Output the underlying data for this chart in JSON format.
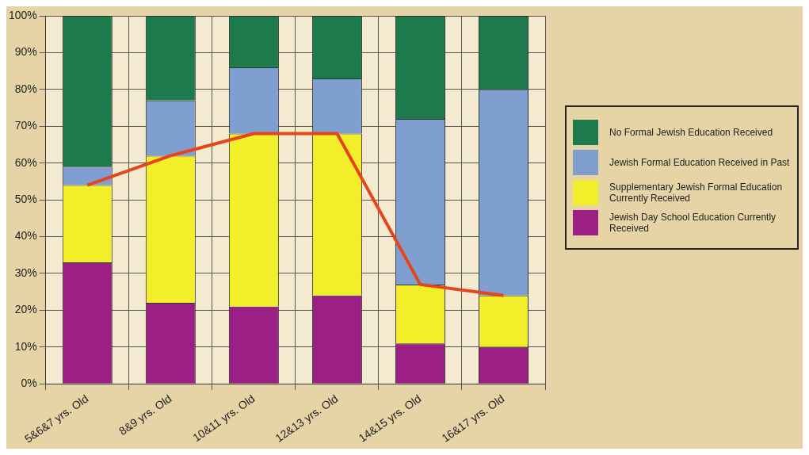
{
  "chart_data": {
    "type": "bar",
    "stacked": true,
    "categories": [
      "5&6&7 yrs. Old",
      "8&9 yrs. Old",
      "10&11 yrs. Old",
      "12&13 yrs. Old",
      "14&15 yrs. Old",
      "16&17 yrs. Old"
    ],
    "series": [
      {
        "name": "Jewish Day School Education Currently Received",
        "color": "#9b1f85",
        "values": [
          33,
          22,
          21,
          24,
          11,
          10
        ]
      },
      {
        "name": "Supplementary Jewish Formal Education Currently Received",
        "color": "#f2ee2a",
        "values": [
          21,
          40,
          47,
          44,
          16,
          14
        ]
      },
      {
        "name": "Jewish Formal Education Received in Past",
        "color": "#7f9fd0",
        "values": [
          5,
          15,
          18,
          15,
          45,
          56
        ]
      },
      {
        "name": "No Formal Jewish Education Received",
        "color": "#1d7a4c",
        "values": [
          41,
          23,
          14,
          17,
          28,
          20
        ]
      },
      {
        "type": "line",
        "color": "#e5441c",
        "values": [
          54,
          62,
          68,
          68,
          27,
          24
        ]
      }
    ],
    "ylim": [
      0,
      100
    ],
    "yticks": [
      {
        "value": 0,
        "label": "0%"
      },
      {
        "value": 10,
        "label": "10%"
      },
      {
        "value": 20,
        "label": "20%"
      },
      {
        "value": 30,
        "label": "30%"
      },
      {
        "value": 40,
        "label": "40%"
      },
      {
        "value": 50,
        "label": "50%"
      },
      {
        "value": 60,
        "label": "60%"
      },
      {
        "value": 70,
        "label": "70%"
      },
      {
        "value": 80,
        "label": "80%"
      },
      {
        "value": 90,
        "label": "90%"
      },
      {
        "value": 100,
        "label": "100%"
      }
    ],
    "grid": true,
    "legend": "right",
    "marker": "none"
  }
}
